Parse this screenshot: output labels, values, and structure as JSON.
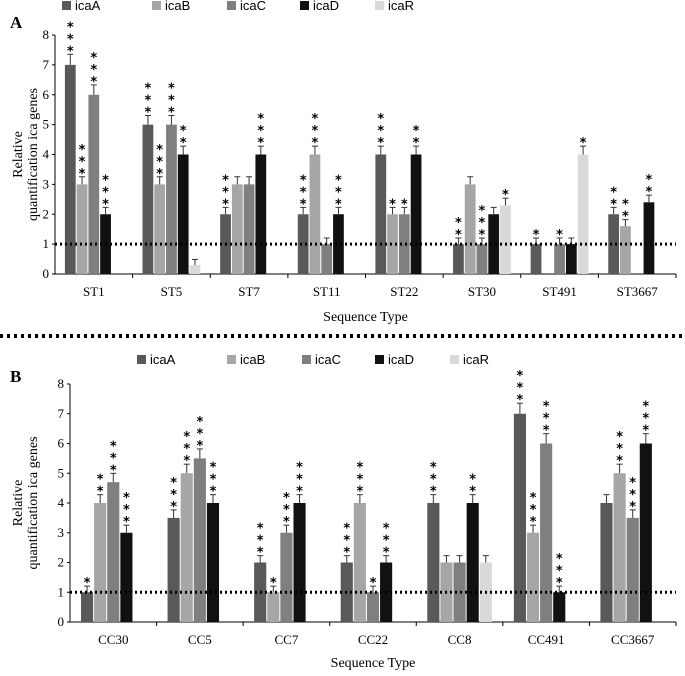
{
  "series_colors": {
    "icaA": "#595959",
    "icaB": "#a6a6a6",
    "icaC": "#7f7f7f",
    "icaD": "#111111",
    "icaR": "#d9d9d9"
  },
  "chart_data": [
    {
      "panel": "A",
      "type": "bar",
      "ylabel_lines": [
        "Relative",
        "quantification ica genes"
      ],
      "xlabel": "Sequence Type",
      "ylim": [
        0,
        8
      ],
      "yticks": [
        "0",
        "1",
        "2",
        "3",
        "4",
        "5",
        "6",
        "7",
        "8"
      ],
      "reference_line": 1,
      "series_names": [
        "icaA",
        "icaB",
        "icaC",
        "icaD",
        "icaR"
      ],
      "categories": [
        "ST1",
        "ST5",
        "ST7",
        "ST11",
        "ST22",
        "ST30",
        "ST491",
        "ST3667"
      ],
      "series": [
        {
          "name": "icaA",
          "values": [
            7.0,
            5.0,
            2.0,
            2.0,
            4.0,
            1.0,
            1.0,
            2.0
          ],
          "stars": [
            "***",
            "***",
            "***",
            "***",
            "***",
            "**",
            "*",
            "**"
          ]
        },
        {
          "name": "icaB",
          "values": [
            3.0,
            3.0,
            3.0,
            4.0,
            2.0,
            3.0,
            null,
            1.6
          ],
          "stars": [
            "***",
            "***",
            "",
            "***",
            "*",
            "",
            "",
            "**"
          ]
        },
        {
          "name": "icaC",
          "values": [
            6.0,
            5.0,
            3.0,
            1.0,
            2.0,
            1.0,
            1.0,
            null
          ],
          "stars": [
            "***",
            "***",
            "",
            "",
            "*",
            "***",
            "*",
            ""
          ]
        },
        {
          "name": "icaD",
          "values": [
            2.0,
            4.0,
            4.0,
            2.0,
            4.0,
            2.0,
            1.0,
            2.4
          ],
          "stars": [
            "***",
            "**",
            "***",
            "***",
            "**",
            "",
            "",
            "**"
          ]
        },
        {
          "name": "icaR",
          "values": [
            null,
            0.3,
            null,
            null,
            null,
            2.3,
            4.0,
            null
          ],
          "stars": [
            "",
            "",
            "",
            "",
            "",
            "*",
            "*",
            ""
          ]
        }
      ]
    },
    {
      "panel": "B",
      "type": "bar",
      "ylabel_lines": [
        "Relative",
        "quantification ica genes"
      ],
      "xlabel": "Sequence Type",
      "ylim": [
        0,
        8
      ],
      "yticks": [
        "0",
        "1",
        "2",
        "3",
        "4",
        "5",
        "6",
        "7",
        "8"
      ],
      "reference_line": 1,
      "series_names": [
        "icaA",
        "icaB",
        "icaC",
        "icaD",
        "icaR"
      ],
      "categories": [
        "CC30",
        "CC5",
        "CC7",
        "CC22",
        "CC8",
        "CC491",
        "CC3667"
      ],
      "series": [
        {
          "name": "icaA",
          "values": [
            1.0,
            3.5,
            2.0,
            2.0,
            4.0,
            7.0,
            4.0
          ],
          "stars": [
            "*",
            "***",
            "***",
            "***",
            "***",
            "***",
            ""
          ]
        },
        {
          "name": "icaB",
          "values": [
            4.0,
            5.0,
            1.0,
            4.0,
            2.0,
            3.0,
            5.0
          ],
          "stars": [
            "**",
            "***",
            "*",
            "***",
            "",
            "***",
            "***"
          ]
        },
        {
          "name": "icaC",
          "values": [
            4.7,
            5.5,
            3.0,
            1.0,
            2.0,
            6.0,
            3.5
          ],
          "stars": [
            "***",
            "***",
            "***",
            "*",
            "",
            "***",
            "***"
          ]
        },
        {
          "name": "icaD",
          "values": [
            3.0,
            4.0,
            4.0,
            2.0,
            4.0,
            1.0,
            6.0
          ],
          "stars": [
            "***",
            "***",
            "***",
            "***",
            "**",
            "***",
            "***"
          ]
        },
        {
          "name": "icaR",
          "values": [
            null,
            null,
            null,
            null,
            2.0,
            null,
            null
          ],
          "stars": [
            "",
            "",
            "",
            "",
            "",
            "",
            ""
          ]
        }
      ]
    }
  ]
}
